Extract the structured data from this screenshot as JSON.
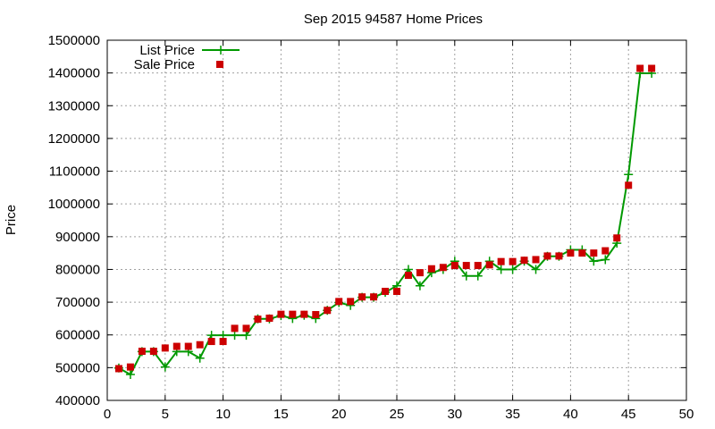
{
  "chart_data": {
    "type": "line",
    "title": "Sep 2015 94587 Home Prices",
    "xlabel": "",
    "ylabel": "Price",
    "xlim": [
      0,
      50
    ],
    "ylim": [
      400000,
      1500000
    ],
    "x_ticks": [
      0,
      5,
      10,
      15,
      20,
      25,
      30,
      35,
      40,
      45,
      50
    ],
    "y_ticks": [
      400000,
      500000,
      600000,
      700000,
      800000,
      900000,
      1000000,
      1100000,
      1200000,
      1300000,
      1400000,
      1500000
    ],
    "grid": true,
    "legend_position": "top-left",
    "series": [
      {
        "name": "List Price",
        "style": "line-with-plus-markers",
        "color": "#009900",
        "x": [
          1,
          2,
          3,
          4,
          5,
          6,
          7,
          8,
          9,
          10,
          11,
          12,
          13,
          14,
          15,
          16,
          17,
          18,
          19,
          20,
          21,
          22,
          23,
          24,
          25,
          26,
          27,
          28,
          29,
          30,
          31,
          32,
          33,
          34,
          35,
          36,
          37,
          38,
          39,
          40,
          41,
          42,
          43,
          44,
          45,
          46,
          47
        ],
        "values": [
          499000,
          479000,
          549000,
          549000,
          502000,
          549000,
          549000,
          529000,
          599000,
          599000,
          599000,
          599000,
          649000,
          649000,
          659000,
          650000,
          660000,
          650000,
          675000,
          699000,
          690000,
          715000,
          715000,
          730000,
          750000,
          800000,
          750000,
          790000,
          800000,
          825000,
          780000,
          780000,
          825000,
          800000,
          800000,
          825000,
          800000,
          840000,
          840000,
          860000,
          860000,
          825000,
          830000,
          880000,
          1090000,
          1399000,
          1399000
        ]
      },
      {
        "name": "Sale Price",
        "style": "square-markers",
        "color": "#cc0000",
        "x": [
          1,
          2,
          3,
          4,
          5,
          6,
          7,
          8,
          9,
          10,
          11,
          12,
          13,
          14,
          15,
          16,
          17,
          18,
          19,
          20,
          21,
          22,
          23,
          24,
          25,
          26,
          27,
          28,
          29,
          30,
          31,
          32,
          33,
          34,
          35,
          36,
          37,
          38,
          39,
          40,
          41,
          42,
          43,
          44,
          45,
          46,
          47
        ],
        "values": [
          497000,
          502000,
          550000,
          550000,
          560000,
          565000,
          565000,
          570000,
          580000,
          580000,
          620000,
          620000,
          648000,
          651000,
          663000,
          663000,
          663000,
          662000,
          675000,
          702000,
          702000,
          716000,
          716000,
          733000,
          733000,
          782000,
          790000,
          802000,
          806000,
          812000,
          812000,
          812000,
          814000,
          824000,
          824000,
          828000,
          830000,
          841000,
          841000,
          850000,
          850000,
          850000,
          857000,
          896000,
          1057000,
          1414000,
          1414000
        ]
      }
    ]
  }
}
